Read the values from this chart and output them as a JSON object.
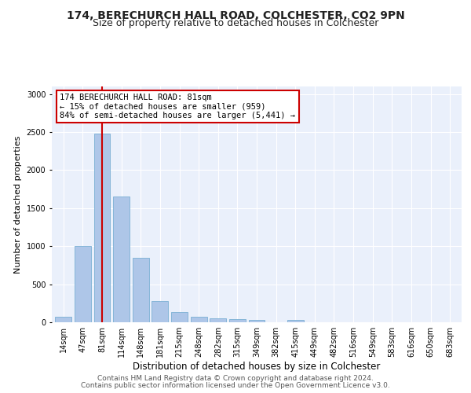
{
  "title1": "174, BERECHURCH HALL ROAD, COLCHESTER, CO2 9PN",
  "title2": "Size of property relative to detached houses in Colchester",
  "xlabel": "Distribution of detached houses by size in Colchester",
  "ylabel": "Number of detached properties",
  "categories": [
    "14sqm",
    "47sqm",
    "81sqm",
    "114sqm",
    "148sqm",
    "181sqm",
    "215sqm",
    "248sqm",
    "282sqm",
    "315sqm",
    "349sqm",
    "382sqm",
    "415sqm",
    "449sqm",
    "482sqm",
    "516sqm",
    "549sqm",
    "583sqm",
    "616sqm",
    "650sqm",
    "683sqm"
  ],
  "values": [
    75,
    1000,
    2475,
    1650,
    850,
    275,
    130,
    70,
    50,
    40,
    30,
    5,
    30,
    5,
    5,
    5,
    5,
    5,
    5,
    5,
    5
  ],
  "bar_color": "#aec6e8",
  "bar_edge_color": "#7aafd4",
  "highlight_line_color": "#cc0000",
  "highlight_line_index": 2,
  "annotation_text": "174 BERECHURCH HALL ROAD: 81sqm\n← 15% of detached houses are smaller (959)\n84% of semi-detached houses are larger (5,441) →",
  "annotation_box_color": "#ffffff",
  "annotation_box_edge_color": "#cc0000",
  "ylim": [
    0,
    3100
  ],
  "yticks": [
    0,
    500,
    1000,
    1500,
    2000,
    2500,
    3000
  ],
  "axes_bg_color": "#eaf0fb",
  "footer_line1": "Contains HM Land Registry data © Crown copyright and database right 2024.",
  "footer_line2": "Contains public sector information licensed under the Open Government Licence v3.0.",
  "title1_fontsize": 10,
  "title2_fontsize": 9,
  "xlabel_fontsize": 8.5,
  "ylabel_fontsize": 8,
  "tick_fontsize": 7,
  "annotation_fontsize": 7.5,
  "footer_fontsize": 6.5
}
